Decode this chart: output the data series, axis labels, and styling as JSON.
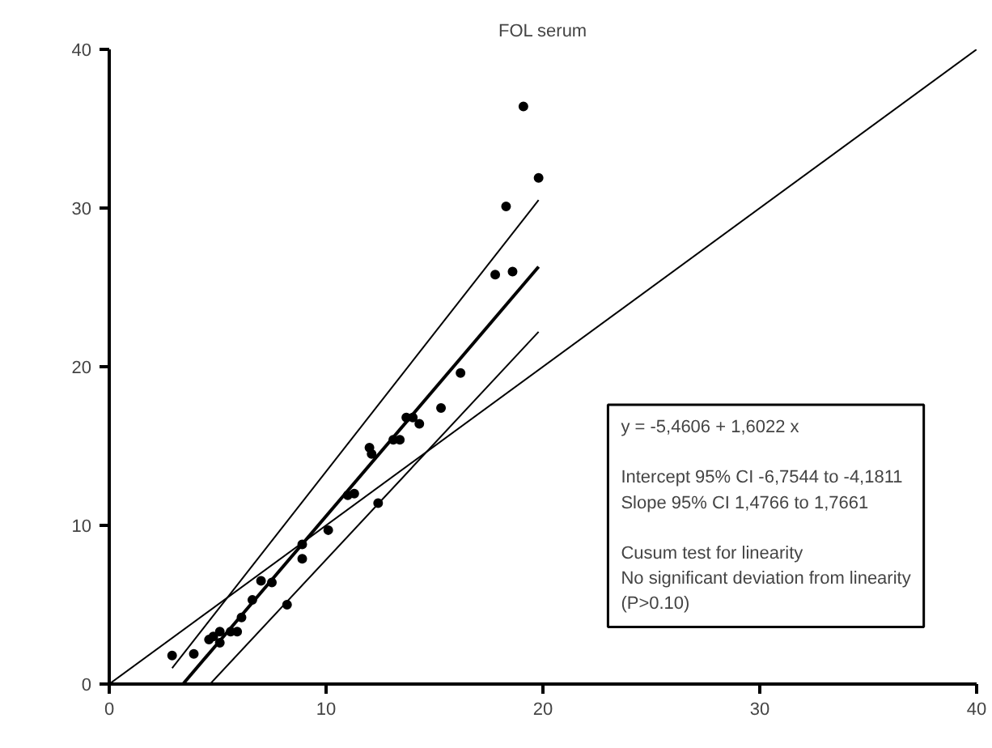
{
  "chart_data": {
    "type": "scatter",
    "title": "FOL serum",
    "xlim": [
      0,
      40
    ],
    "ylim": [
      0,
      40
    ],
    "xticks": [
      0,
      10,
      20,
      30,
      40
    ],
    "yticks": [
      0,
      10,
      20,
      30,
      40
    ],
    "grid": false,
    "marker": "circle",
    "series": [
      {
        "color": "#000000",
        "x": [
          2.9,
          3.9,
          4.6,
          4.8,
          5.1,
          5.1,
          5.6,
          5.9,
          6.1,
          6.6,
          7.0,
          7.5,
          8.2,
          8.9,
          8.9,
          10.1,
          11.0,
          11.3,
          12.4,
          12.0,
          12.1,
          13.1,
          13.4,
          13.7,
          14.0,
          14.3,
          15.3,
          16.2,
          17.8,
          18.6,
          18.3,
          19.8,
          19.1
        ],
        "values": [
          1.8,
          1.9,
          2.8,
          3.0,
          3.3,
          2.6,
          3.3,
          3.3,
          4.2,
          5.3,
          6.5,
          6.4,
          5.0,
          7.9,
          8.8,
          9.7,
          11.9,
          12.0,
          11.4,
          14.9,
          14.5,
          15.4,
          15.4,
          16.8,
          16.8,
          16.4,
          17.4,
          19.6,
          25.8,
          26.0,
          30.1,
          31.9,
          36.4
        ]
      },
      {
        "type": "line",
        "color": "#000000",
        "marker": "none",
        "x": [
          3.4,
          19.8
        ],
        "values": [
          0,
          26.3
        ]
      },
      {
        "type": "line",
        "color": "#000000",
        "marker": "none",
        "x": [
          2.9,
          19.8
        ],
        "values": [
          1.0,
          30.5
        ]
      },
      {
        "type": "line",
        "color": "#000000",
        "marker": "none",
        "x": [
          4.65,
          19.8
        ],
        "values": [
          0,
          22.2
        ]
      },
      {
        "type": "line",
        "color": "#000000",
        "marker": "none",
        "x": [
          0,
          40
        ],
        "values": [
          0,
          40
        ]
      }
    ],
    "annotations": [
      "y  = -5,4606  + 1,6022  x",
      "Intercept 95% CI -6,7544 to -4,1811\nSlope 95% CI 1,4766 to 1,7661",
      "Cusum test for linearity\nNo significant deviation from linearity\n(P>0.10)"
    ]
  }
}
